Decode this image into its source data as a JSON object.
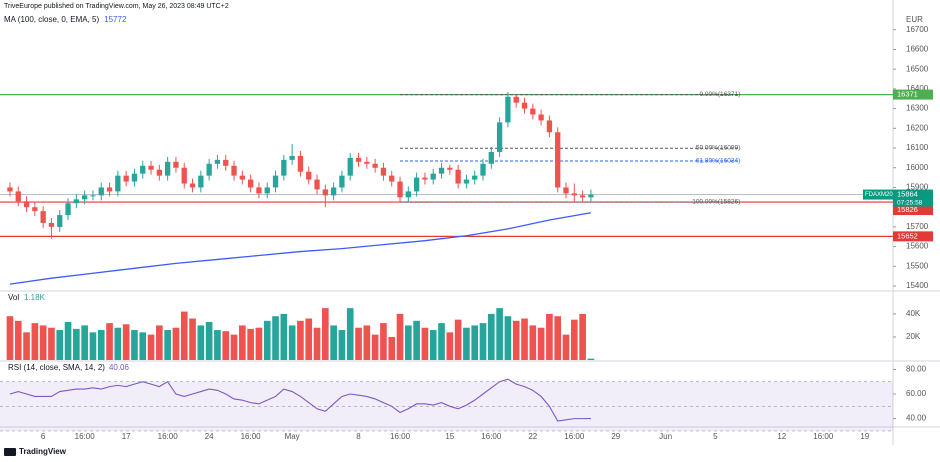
{
  "header": {
    "publisher": "TriveEurope published on TradingView.com, May 26, 2023 08:49 UTC+2"
  },
  "footer": {
    "brand": "TradingView"
  },
  "chart_data": [
    {
      "type": "candlestick",
      "symbol": "FDAXM2023",
      "currency": "EUR",
      "up_color": "#26a69a",
      "down_color": "#ef5350",
      "open": [
        15900,
        15880,
        15830,
        15800,
        15780,
        15720,
        15700,
        15760,
        15820,
        15840,
        15860,
        15860,
        15900,
        15880,
        15960,
        15930,
        15970,
        16010,
        15990,
        15960,
        16030,
        16000,
        15920,
        15900,
        15960,
        16020,
        16040,
        16010,
        15960,
        15940,
        15900,
        15870,
        15900,
        15960,
        16040,
        16060,
        15980,
        15940,
        15890,
        15860,
        15900,
        15960,
        16050,
        16030,
        16020,
        16000,
        15960,
        15930,
        15850,
        15880,
        15950,
        15940,
        15970,
        16000,
        15990,
        15920,
        15940,
        15960,
        16020,
        16080,
        16230,
        16360,
        16330,
        16300,
        16270,
        16240,
        16180,
        15900,
        15870,
        15860,
        15850
      ],
      "high": [
        15925,
        15905,
        15855,
        15825,
        15805,
        15745,
        15785,
        15845,
        15865,
        15885,
        15885,
        15925,
        15925,
        15985,
        15985,
        15995,
        16035,
        16035,
        16015,
        16055,
        16055,
        16025,
        15945,
        15985,
        16045,
        16065,
        16065,
        16035,
        15985,
        15965,
        15925,
        15925,
        15985,
        16065,
        16120,
        16085,
        16005,
        15965,
        15915,
        15925,
        15985,
        16075,
        16075,
        16055,
        16045,
        16025,
        15985,
        15955,
        15905,
        15975,
        15975,
        15995,
        16025,
        16015,
        16015,
        15965,
        15985,
        16045,
        16105,
        16255,
        16385,
        16371,
        16355,
        16325,
        16295,
        16265,
        16205,
        15925,
        15920,
        15885,
        15889
      ],
      "low": [
        15855,
        15805,
        15775,
        15755,
        15695,
        15640,
        15675,
        15735,
        15795,
        15815,
        15835,
        15835,
        15855,
        15855,
        15905,
        15905,
        15945,
        15965,
        15935,
        15935,
        15975,
        15895,
        15875,
        15875,
        15935,
        15995,
        15985,
        15935,
        15915,
        15875,
        15845,
        15845,
        15875,
        15935,
        16015,
        15955,
        15915,
        15865,
        15800,
        15835,
        15875,
        15935,
        16005,
        15995,
        15975,
        15935,
        15905,
        15825,
        15825,
        15855,
        15915,
        15915,
        15945,
        15965,
        15895,
        15895,
        15915,
        15935,
        15995,
        16055,
        16205,
        16305,
        16275,
        16245,
        16215,
        16155,
        15875,
        15845,
        15826,
        15825,
        15830
      ],
      "close": [
        15880,
        15830,
        15800,
        15780,
        15720,
        15700,
        15760,
        15820,
        15840,
        15860,
        15860,
        15900,
        15880,
        15960,
        15930,
        15970,
        16010,
        15990,
        15960,
        16030,
        16000,
        15920,
        15900,
        15960,
        16020,
        16040,
        16010,
        15960,
        15940,
        15900,
        15870,
        15900,
        15960,
        16040,
        16060,
        15980,
        15940,
        15890,
        15860,
        15900,
        15960,
        16050,
        16030,
        16020,
        16000,
        15960,
        15930,
        15850,
        15880,
        15950,
        15940,
        15970,
        16000,
        15990,
        15920,
        15940,
        15960,
        16020,
        16080,
        16230,
        16360,
        16330,
        16300,
        16270,
        16240,
        16180,
        15900,
        15870,
        15860,
        15850,
        15864
      ],
      "xlim": [
        -1.2,
        106.4
      ],
      "xticks": [
        {
          "value": 4,
          "label": "6"
        },
        {
          "value": 9,
          "label": "16:00"
        },
        {
          "value": 14,
          "label": "17"
        },
        {
          "value": 19,
          "label": "16:00"
        },
        {
          "value": 24,
          "label": "24"
        },
        {
          "value": 29,
          "label": "16:00"
        },
        {
          "value": 34,
          "label": "May"
        },
        {
          "value": 42,
          "label": "8"
        },
        {
          "value": 47,
          "label": "16:00"
        },
        {
          "value": 53,
          "label": "15"
        },
        {
          "value": 58,
          "label": "16:00"
        },
        {
          "value": 63,
          "label": "22"
        },
        {
          "value": 68,
          "label": "16:00"
        },
        {
          "value": 73,
          "label": "29"
        },
        {
          "value": 79,
          "label": "Jun"
        },
        {
          "value": 85,
          "label": "5"
        },
        {
          "value": 93,
          "label": "12"
        },
        {
          "value": 98,
          "label": "16:00"
        },
        {
          "value": 103,
          "label": "19"
        }
      ],
      "ylim": [
        15380,
        16800
      ],
      "yticks": [
        15400,
        15500,
        15600,
        15700,
        15800,
        15900,
        16000,
        16100,
        16200,
        16300,
        16400,
        16500,
        16600,
        16700
      ],
      "ma": {
        "name": "MA (100, close, 0, EMA, 5)",
        "color": "#3d5afe",
        "last": 15772,
        "x": [
          0,
          5,
          10,
          15,
          20,
          25,
          30,
          35,
          40,
          45,
          50,
          55,
          60,
          65,
          70
        ],
        "values": [
          15410,
          15440,
          15465,
          15490,
          15515,
          15535,
          15555,
          15575,
          15590,
          15610,
          15630,
          15655,
          15690,
          15735,
          15772
        ]
      },
      "lines": [
        {
          "value": 16371,
          "color": "#4caf50"
        },
        {
          "value": 15826,
          "color": "#e53935"
        },
        {
          "value": 15652,
          "color": "#e53935"
        }
      ],
      "last_price": 15864,
      "countdown": "07:25:58",
      "last_color": "#089981",
      "fib": [
        {
          "label": "0.00%(16371)",
          "value": 16371,
          "color": "#555555"
        },
        {
          "label": "50.00%(16099)",
          "value": 16099,
          "color": "#555555"
        },
        {
          "label": "61.80%(16034)",
          "value": 16034,
          "color": "#2962ff"
        },
        {
          "label": "100.00%(15826)",
          "value": 15826,
          "color": "#555555"
        }
      ]
    },
    {
      "type": "bar",
      "title": "Vol",
      "last_label": "1.18K",
      "values": [
        38000,
        34000,
        24000,
        32000,
        30000,
        28000,
        26000,
        33000,
        27000,
        30000,
        24000,
        26000,
        32000,
        28000,
        31000,
        26000,
        24000,
        22000,
        30000,
        26000,
        28000,
        42000,
        36000,
        30000,
        33000,
        26000,
        25000,
        22000,
        30000,
        27000,
        28000,
        34000,
        38000,
        40000,
        30000,
        34000,
        36000,
        28000,
        45000,
        30000,
        26000,
        45000,
        28000,
        30000,
        22000,
        32000,
        20000,
        40000,
        30000,
        34000,
        28000,
        26000,
        32000,
        24000,
        35000,
        28000,
        30000,
        32000,
        40000,
        45000,
        38000,
        34000,
        36000,
        30000,
        28000,
        40000,
        38000,
        22000,
        35000,
        40000,
        1180
      ],
      "ylim": [
        0,
        59000
      ],
      "yticks": [
        {
          "value": 20000,
          "label": "20K"
        },
        {
          "value": 40000,
          "label": "40K"
        }
      ]
    },
    {
      "type": "line",
      "title": "RSI (14, close, SMA, 14, 2)",
      "color": "#7e57c2",
      "values": [
        60,
        62,
        60,
        58,
        58,
        58,
        62,
        63,
        64,
        64,
        65,
        64,
        66,
        67,
        66,
        68,
        70,
        68,
        66,
        70,
        60,
        58,
        60,
        62,
        64,
        63,
        60,
        56,
        55,
        53,
        52,
        55,
        58,
        64,
        62,
        58,
        53,
        48,
        46,
        52,
        58,
        60,
        59,
        58,
        56,
        53,
        50,
        45,
        48,
        52,
        52,
        51,
        53,
        50,
        48,
        51,
        55,
        60,
        65,
        70,
        72,
        68,
        66,
        63,
        58,
        50,
        38,
        39,
        40,
        40,
        40.06
      ],
      "ylim": [
        34,
        86
      ],
      "yticks": [
        {
          "value": 40,
          "label": "40.00"
        },
        {
          "value": 60,
          "label": "60.00"
        },
        {
          "value": 80,
          "label": "80.00"
        }
      ],
      "band": [
        30,
        70
      ],
      "midline": 50
    }
  ]
}
